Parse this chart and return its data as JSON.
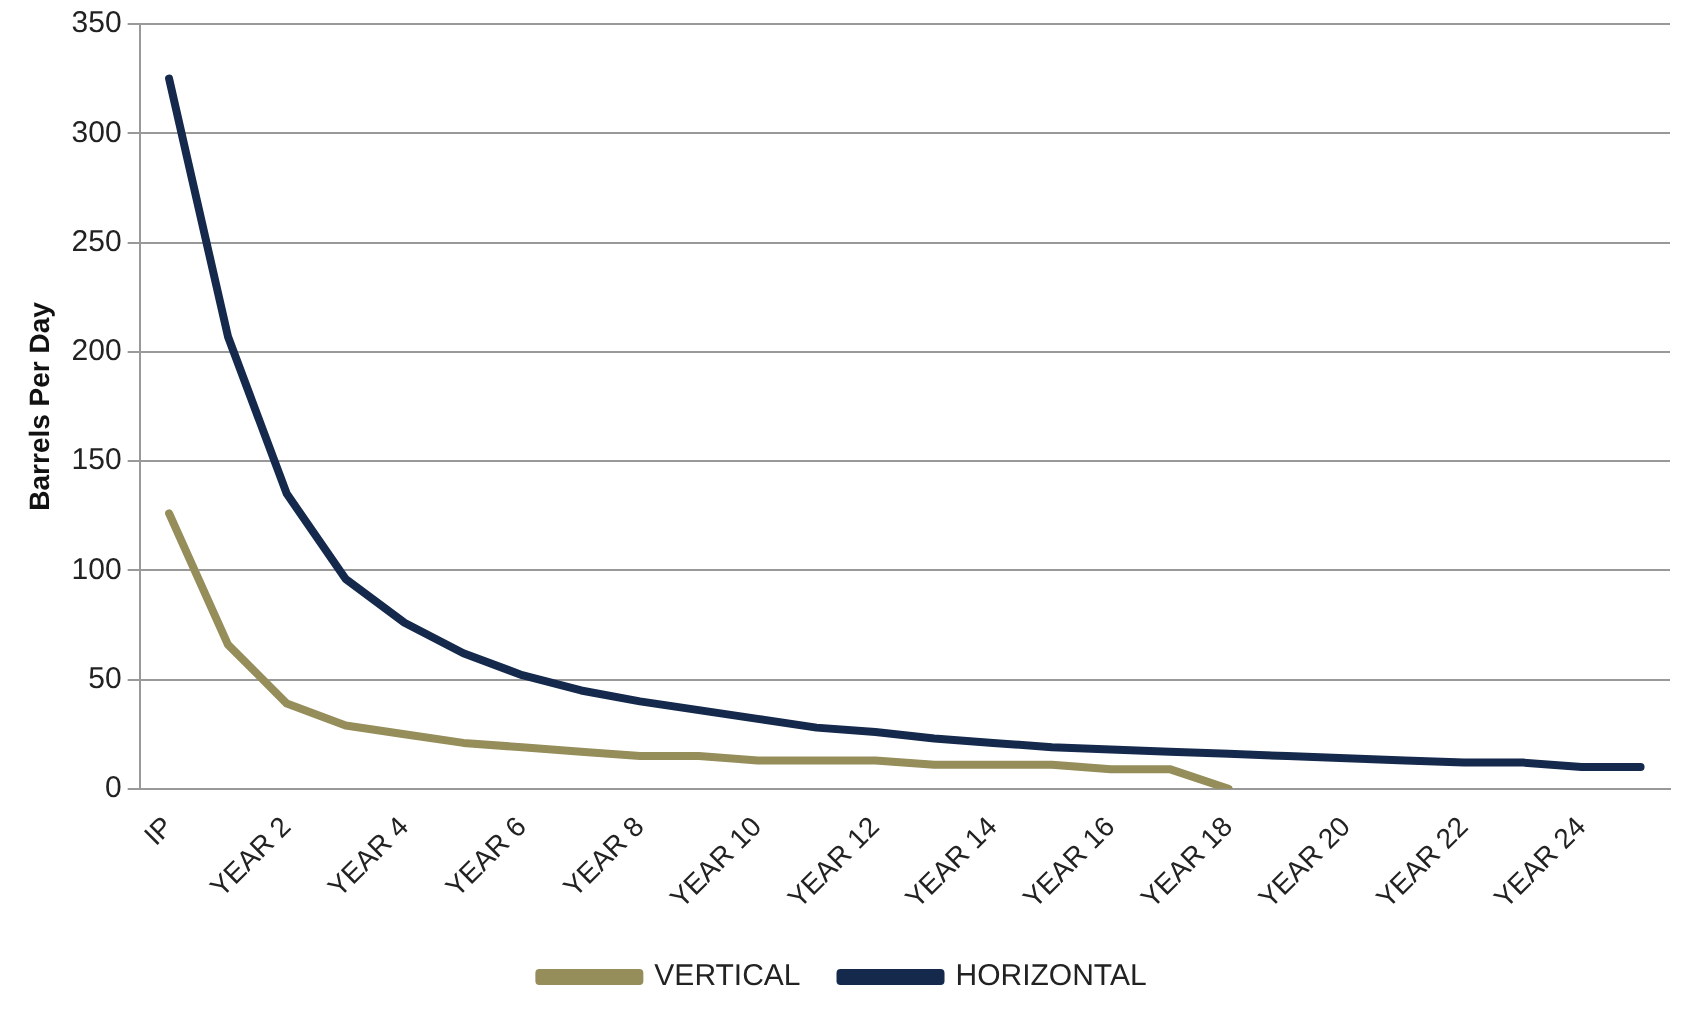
{
  "chart_data": {
    "type": "line",
    "ylabel": "Barrels Per Day",
    "categories": [
      "IP",
      null,
      "YEAR 2",
      null,
      "YEAR 4",
      null,
      "YEAR 6",
      null,
      "YEAR 8",
      null,
      "YEAR 10",
      null,
      "YEAR 12",
      null,
      "YEAR 14",
      null,
      "YEAR 16",
      null,
      "YEAR 18",
      null,
      "YEAR 20",
      null,
      "YEAR 22",
      null,
      "YEAR 24",
      null
    ],
    "series": [
      {
        "name": "VERTICAL",
        "color": "#958d5a",
        "values": [
          126,
          66,
          39,
          29,
          25,
          21,
          19,
          17,
          15,
          15,
          13,
          13,
          13,
          11,
          11,
          11,
          9,
          9,
          0,
          null,
          null,
          null,
          null,
          null,
          null,
          null
        ]
      },
      {
        "name": "HORIZONTAL",
        "color": "#15294c",
        "values": [
          325,
          207,
          135,
          96,
          76,
          62,
          52,
          45,
          40,
          36,
          32,
          28,
          26,
          23,
          21,
          19,
          18,
          17,
          16,
          15,
          14,
          13,
          12,
          12,
          10,
          10
        ]
      }
    ],
    "ylim": [
      0,
      350
    ],
    "yticks": [
      0,
      50,
      100,
      150,
      200,
      250,
      300,
      350
    ],
    "grid": "y",
    "legend": "bottom",
    "marker": "none",
    "line_style": "solid"
  }
}
